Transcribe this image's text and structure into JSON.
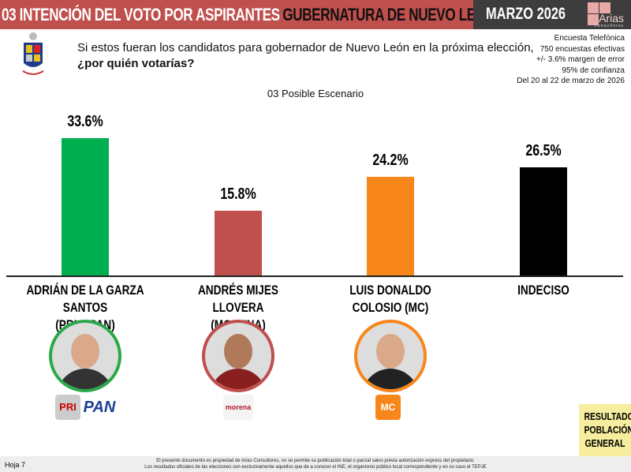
{
  "header": {
    "title_main": "03 INTENCIÓN DEL VOTO POR ASPIRANTES",
    "title_sub": "GUBERNATURA DE NUEVO LEÓN",
    "date": "MARZO 2026",
    "logo_name": "Arias",
    "logo_sub": "Consultores"
  },
  "question": {
    "line1": "Si estos fueran los candidatos para gobernador de Nuevo León en la próxima elección,",
    "line2": "¿por quién votarías?"
  },
  "meta": [
    "Encuesta Telefónica",
    "750 encuestas efectivas",
    "+/- 3.6% margen de error",
    "95% de confianza",
    "Del 20 al 22 de marzo de 2026"
  ],
  "chart_data": {
    "type": "bar",
    "title": "03 Posible Escenario",
    "categories": [
      "ADRIÁN DE LA GARZA SANTOS (PRI Y PAN)",
      "ANDRÉS MIJES LLOVERA (MORENA)",
      "LUIS DONALDO COLOSIO (MC)",
      "INDECISO"
    ],
    "category_lines": [
      [
        "ADRIÁN DE LA GARZA SANTOS",
        "(PRI Y PAN)"
      ],
      [
        "ANDRÉS MIJES LLOVERA",
        "(MORENA)"
      ],
      [
        "LUIS DONALDO COLOSIO (MC)",
        ""
      ],
      [
        "INDECISO",
        ""
      ]
    ],
    "values": [
      33.6,
      15.8,
      24.2,
      26.5
    ],
    "labels": [
      "33.6%",
      "15.8%",
      "24.2%",
      "26.5%"
    ],
    "colors": [
      "#00b050",
      "#c0504d",
      "#f7861b",
      "#000000"
    ],
    "ylim": [
      0,
      40
    ],
    "grid": false
  },
  "parties": {
    "pri": "PRI",
    "pan": "PAN",
    "morena": "morena",
    "mc": "MC"
  },
  "side_label": [
    "RESULTADO",
    "POBLACIÓN",
    "GENERAL"
  ],
  "footer": {
    "page": "Hoja 7",
    "line1": "El presente documento es propiedad de Arias Consultores, no se permite su publicación total o parcial salvo previa autorización express del propietario.",
    "line2": "Los resultados oficiales de las elecciones son exclusivamente aquellos que de a conocer el INE, el organismo público local correspondiente  y en su caso el TEPJE"
  }
}
